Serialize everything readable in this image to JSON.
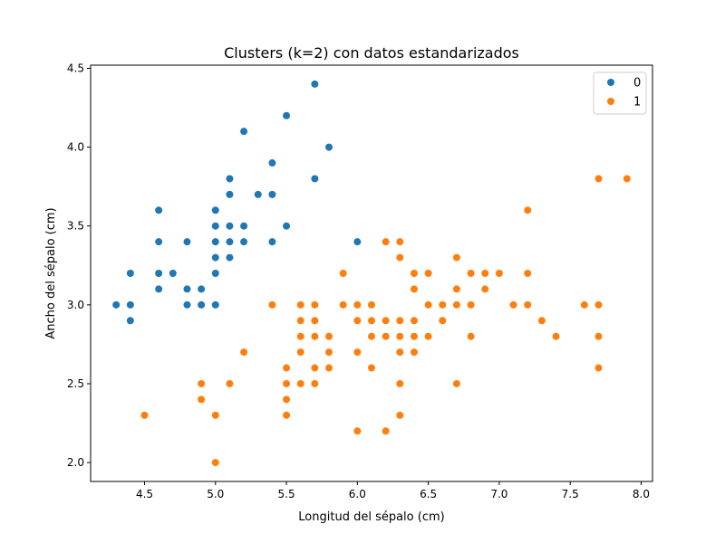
{
  "chart_data": {
    "type": "scatter",
    "title": "Clusters (k=2) con datos estandarizados",
    "xlabel": "Longitud del sépalo (cm)",
    "ylabel": "Ancho del sépalo (cm)",
    "xlim": [
      4.12,
      8.08
    ],
    "ylim": [
      1.88,
      4.52
    ],
    "xticks": [
      "4.5",
      "5.0",
      "5.5",
      "6.0",
      "6.5",
      "7.0",
      "7.5",
      "8.0"
    ],
    "yticks": [
      "2.0",
      "2.5",
      "3.0",
      "3.5",
      "4.0",
      "4.5"
    ],
    "grid": false,
    "legend_position": "top-right",
    "series": [
      {
        "name": "0",
        "color": "#1f77b4",
        "points": [
          [
            4.3,
            3.0
          ],
          [
            4.4,
            3.0
          ],
          [
            4.4,
            2.9
          ],
          [
            4.4,
            3.2
          ],
          [
            4.6,
            3.6
          ],
          [
            4.6,
            3.4
          ],
          [
            4.6,
            3.2
          ],
          [
            4.6,
            3.1
          ],
          [
            4.7,
            3.2
          ],
          [
            4.8,
            3.4
          ],
          [
            4.8,
            3.1
          ],
          [
            4.8,
            3.0
          ],
          [
            4.9,
            3.1
          ],
          [
            4.9,
            3.0
          ],
          [
            5.0,
            3.6
          ],
          [
            5.0,
            3.5
          ],
          [
            5.0,
            3.4
          ],
          [
            5.0,
            3.3
          ],
          [
            5.0,
            3.2
          ],
          [
            5.0,
            3.0
          ],
          [
            5.1,
            3.8
          ],
          [
            5.1,
            3.7
          ],
          [
            5.1,
            3.5
          ],
          [
            5.1,
            3.4
          ],
          [
            5.1,
            3.3
          ],
          [
            5.2,
            4.1
          ],
          [
            5.2,
            3.5
          ],
          [
            5.2,
            3.4
          ],
          [
            5.3,
            3.7
          ],
          [
            5.4,
            3.9
          ],
          [
            5.4,
            3.7
          ],
          [
            5.4,
            3.4
          ],
          [
            5.5,
            4.2
          ],
          [
            5.5,
            3.5
          ],
          [
            5.7,
            4.4
          ],
          [
            5.7,
            3.8
          ],
          [
            5.8,
            4.0
          ],
          [
            6.0,
            3.4
          ]
        ]
      },
      {
        "name": "1",
        "color": "#ff7f0e",
        "points": [
          [
            4.5,
            2.3
          ],
          [
            4.9,
            2.5
          ],
          [
            4.9,
            2.4
          ],
          [
            5.0,
            2.3
          ],
          [
            5.0,
            2.0
          ],
          [
            5.1,
            2.5
          ],
          [
            5.2,
            2.7
          ],
          [
            5.4,
            3.0
          ],
          [
            5.5,
            2.6
          ],
          [
            5.5,
            2.5
          ],
          [
            5.5,
            2.4
          ],
          [
            5.5,
            2.3
          ],
          [
            5.6,
            3.0
          ],
          [
            5.6,
            2.9
          ],
          [
            5.6,
            2.8
          ],
          [
            5.6,
            2.7
          ],
          [
            5.6,
            2.5
          ],
          [
            5.7,
            3.0
          ],
          [
            5.7,
            2.9
          ],
          [
            5.7,
            2.8
          ],
          [
            5.7,
            2.6
          ],
          [
            5.7,
            2.5
          ],
          [
            5.8,
            2.8
          ],
          [
            5.8,
            2.7
          ],
          [
            5.8,
            2.6
          ],
          [
            5.9,
            3.2
          ],
          [
            5.9,
            3.0
          ],
          [
            6.0,
            3.0
          ],
          [
            6.0,
            2.9
          ],
          [
            6.0,
            2.7
          ],
          [
            6.0,
            2.2
          ],
          [
            6.1,
            3.0
          ],
          [
            6.1,
            2.9
          ],
          [
            6.1,
            2.8
          ],
          [
            6.1,
            2.6
          ],
          [
            6.2,
            3.4
          ],
          [
            6.2,
            2.9
          ],
          [
            6.2,
            2.8
          ],
          [
            6.2,
            2.2
          ],
          [
            6.3,
            3.4
          ],
          [
            6.3,
            3.3
          ],
          [
            6.3,
            2.9
          ],
          [
            6.3,
            2.8
          ],
          [
            6.3,
            2.7
          ],
          [
            6.3,
            2.5
          ],
          [
            6.3,
            2.3
          ],
          [
            6.4,
            3.2
          ],
          [
            6.4,
            3.1
          ],
          [
            6.4,
            2.9
          ],
          [
            6.4,
            2.8
          ],
          [
            6.4,
            2.7
          ],
          [
            6.5,
            3.2
          ],
          [
            6.5,
            3.0
          ],
          [
            6.5,
            2.8
          ],
          [
            6.6,
            3.0
          ],
          [
            6.6,
            2.9
          ],
          [
            6.7,
            3.3
          ],
          [
            6.7,
            3.1
          ],
          [
            6.7,
            3.0
          ],
          [
            6.7,
            2.5
          ],
          [
            6.8,
            3.2
          ],
          [
            6.8,
            3.0
          ],
          [
            6.8,
            2.8
          ],
          [
            6.9,
            3.2
          ],
          [
            6.9,
            3.1
          ],
          [
            7.0,
            3.2
          ],
          [
            7.1,
            3.0
          ],
          [
            7.2,
            3.6
          ],
          [
            7.2,
            3.2
          ],
          [
            7.2,
            3.0
          ],
          [
            7.3,
            2.9
          ],
          [
            7.4,
            2.8
          ],
          [
            7.6,
            3.0
          ],
          [
            7.7,
            3.8
          ],
          [
            7.7,
            3.0
          ],
          [
            7.7,
            2.8
          ],
          [
            7.7,
            2.6
          ],
          [
            7.9,
            3.8
          ]
        ]
      }
    ]
  }
}
